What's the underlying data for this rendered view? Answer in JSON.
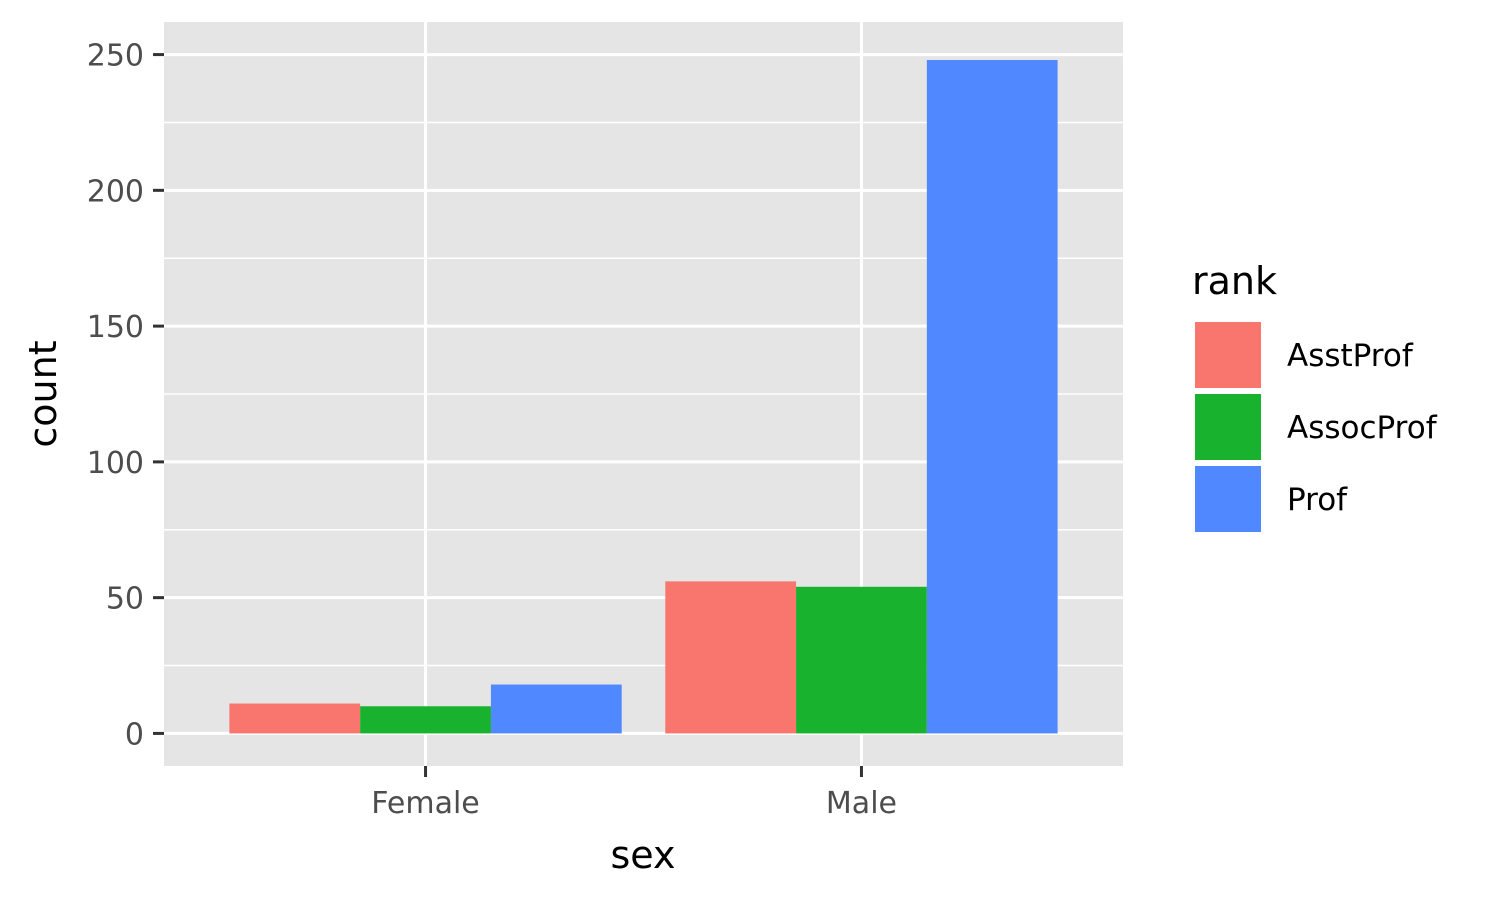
{
  "chart_data": {
    "type": "bar",
    "categories": [
      "Female",
      "Male"
    ],
    "series": [
      {
        "name": "AsstProf",
        "values": [
          11,
          56
        ],
        "color": "#F8766D"
      },
      {
        "name": "AssocProf",
        "values": [
          10,
          54
        ],
        "color": "#19B22E"
      },
      {
        "name": "Prof",
        "values": [
          18,
          248
        ],
        "color": "#5088FF"
      }
    ],
    "xlabel": "sex",
    "ylabel": "count",
    "ylim": [
      -12,
      262
    ],
    "yticks": [
      0,
      50,
      100,
      150,
      200,
      250
    ],
    "legend_title": "rank",
    "legend_position": "right",
    "grid": true,
    "panel_background": "#E5E5E5",
    "grid_color": "#FFFFFF"
  }
}
